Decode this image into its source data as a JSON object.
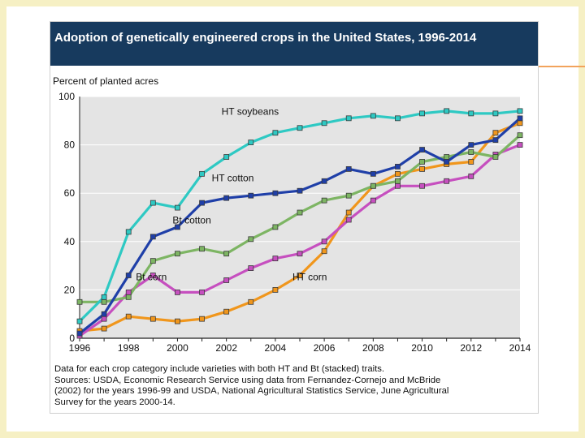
{
  "theme": {
    "slide_border": "#f6f0c4",
    "accent": "#f2a35c",
    "title_bg": "#173a5e",
    "plot_bg": "#e4e4e4"
  },
  "figure": {
    "title": "Adoption of genetically engineered crops in the United States, 1996-2014",
    "footnote": [
      "Data for each crop category include varieties with both HT and Bt (stacked) traits.",
      "Sources: USDA, Economic Research Service using data from Fernandez-Cornejo and McBride",
      "(2002) for the years 1996-99 and USDA, National Agricultural Statistics Service, June Agricultural",
      "Survey for the years 2000-14."
    ]
  },
  "chart_data": {
    "type": "line",
    "title": "Adoption of genetically engineered crops in the United States, 1996-2014",
    "xlabel": "",
    "ylabel": "Percent of planted acres",
    "x": [
      1996,
      1997,
      1998,
      1999,
      2000,
      2001,
      2002,
      2003,
      2004,
      2005,
      2006,
      2007,
      2008,
      2009,
      2010,
      2011,
      2012,
      2013,
      2014
    ],
    "xlim": [
      1996,
      2014
    ],
    "ylim": [
      0,
      100
    ],
    "xticks": [
      1996,
      1998,
      2000,
      2002,
      2004,
      2006,
      2008,
      2010,
      2012,
      2014
    ],
    "yticks": [
      0,
      20,
      40,
      60,
      80,
      100
    ],
    "grid": true,
    "series": [
      {
        "name": "HT soybeans",
        "color": "#2ec9c3",
        "values": [
          7,
          17,
          44,
          56,
          54,
          68,
          75,
          81,
          85,
          87,
          89,
          91,
          92,
          91,
          93,
          94,
          93,
          93,
          94
        ]
      },
      {
        "name": "HT cotton",
        "color": "#1f3fa8",
        "values": [
          2,
          10,
          26,
          42,
          46,
          56,
          58,
          59,
          60,
          61,
          65,
          70,
          68,
          71,
          78,
          73,
          80,
          82,
          91
        ]
      },
      {
        "name": "Bt cotton",
        "color": "#7db563",
        "values": [
          15,
          15,
          17,
          32,
          35,
          37,
          35,
          41,
          46,
          52,
          57,
          59,
          63,
          65,
          73,
          75,
          77,
          75,
          84
        ]
      },
      {
        "name": "Bt corn",
        "color": "#c64fbf",
        "values": [
          1,
          8,
          19,
          26,
          19,
          19,
          24,
          29,
          33,
          35,
          40,
          49,
          57,
          63,
          63,
          65,
          67,
          76,
          80
        ]
      },
      {
        "name": "HT corn",
        "color": "#f0961c",
        "values": [
          3,
          4,
          9,
          8,
          7,
          8,
          11,
          15,
          20,
          26,
          36,
          52,
          63,
          68,
          70,
          72,
          73,
          85,
          89
        ]
      }
    ]
  }
}
